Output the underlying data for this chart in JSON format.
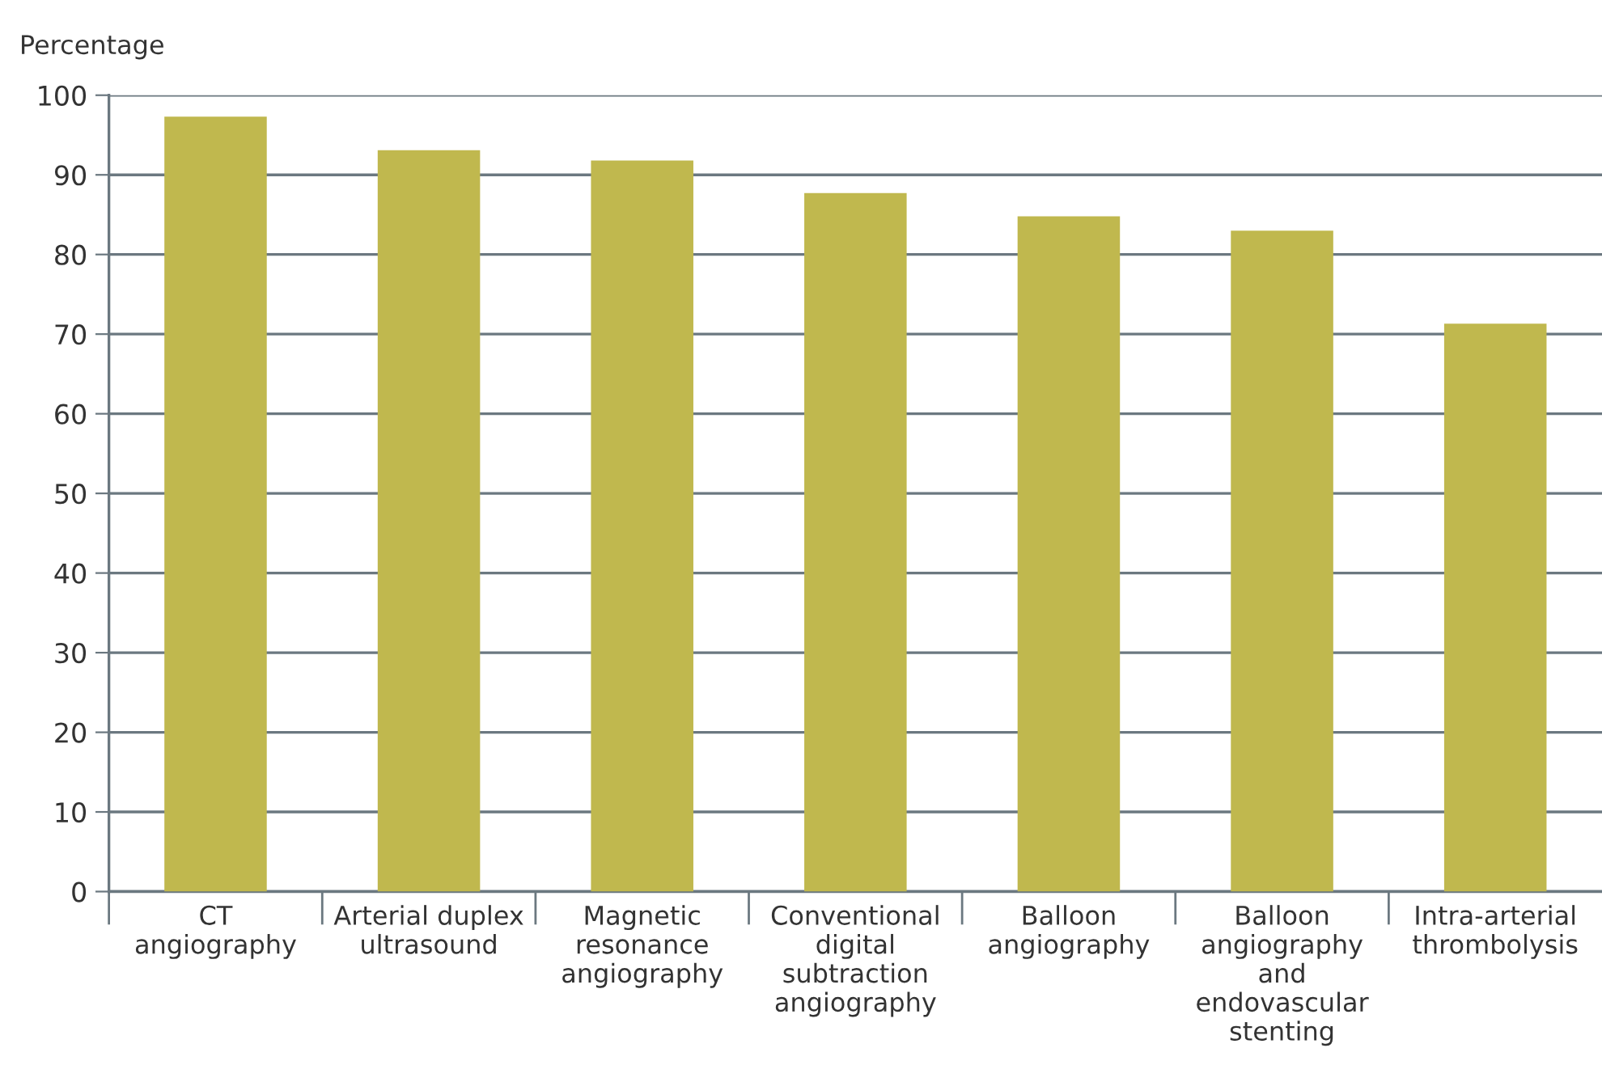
{
  "chart_data": {
    "type": "bar",
    "ylabel": "Percentage",
    "categories": [
      "CT\nangiography",
      "Arterial duplex\nultrasound",
      "Magnetic\nresonance\nangiography",
      "Conventional\ndigital\nsubtraction\nangiography",
      "Balloon\nangiography",
      "Balloon\nangiography\nand\nendovascular\nstenting",
      "Intra-arterial\nthrombolysis"
    ],
    "values": [
      97.3,
      93.1,
      91.8,
      87.7,
      84.8,
      83.0,
      71.3
    ],
    "color": "#c0b84e",
    "ylim": [
      0,
      100
    ],
    "yticks": [
      0,
      10,
      20,
      30,
      40,
      50,
      60,
      70,
      80,
      90,
      100
    ],
    "grid": "y"
  }
}
